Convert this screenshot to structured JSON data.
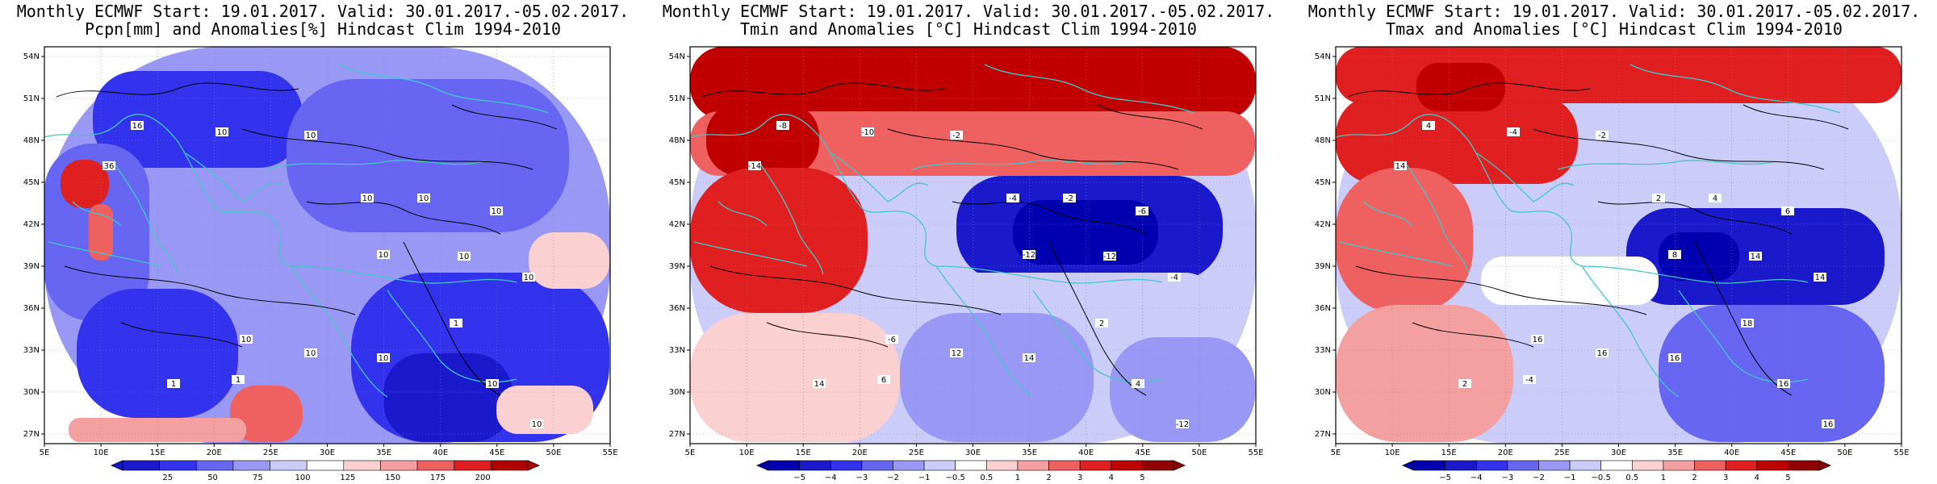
{
  "panels": [
    {
      "id": "pcpn",
      "title_line1": "Monthly ECMWF Start: 19.01.2017. Valid: 30.01.2017.-05.02.2017.",
      "title_line2": "Pcpn[mm] and Anomalies[%] Hindcast Clim 1994-2010",
      "colorbar": {
        "labels": [
          "25",
          "50",
          "75",
          "100",
          "125",
          "150",
          "175",
          "200"
        ],
        "colors": [
          "#1a1acc",
          "#3333ee",
          "#6666f2",
          "#9999f5",
          "#ccccf8",
          "#ffffff",
          "#fad0d0",
          "#f5a0a0",
          "#ef6060",
          "#e02020",
          "#b00000"
        ]
      },
      "contour_labels": [
        "16",
        "10",
        "10",
        "10",
        "10",
        "10",
        "10",
        "10",
        "10",
        "10",
        "10",
        "10",
        "1",
        "1",
        "10",
        "1",
        "10",
        "36"
      ]
    },
    {
      "id": "tmin",
      "title_line1": "Monthly ECMWF Start: 19.01.2017. Valid: 30.01.2017.-05.02.2017.",
      "title_line2": "Tmin and Anomalies [°C] Hindcast Clim 1994-2010",
      "colorbar": {
        "labels": [
          "−5",
          "−4",
          "−3",
          "−2",
          "−1",
          "−0.5",
          "0.5",
          "1",
          "2",
          "3",
          "4",
          "5"
        ],
        "colors": [
          "#0000b0",
          "#1a1acc",
          "#3333ee",
          "#6666f2",
          "#9999f5",
          "#ccccf8",
          "#ffffff",
          "#fad0d0",
          "#f5a0a0",
          "#ef6060",
          "#e02020",
          "#c00000",
          "#900000"
        ]
      },
      "contour_labels": [
        "-8",
        "-10",
        "-2",
        "-4",
        "-2",
        "-6",
        "-12",
        "-12",
        "-4",
        "-6",
        "12",
        "14",
        "14",
        "6",
        "4",
        "2",
        "-12",
        "-14"
      ]
    },
    {
      "id": "tmax",
      "title_line1": "Monthly ECMWF Start: 19.01.2017. Valid: 30.01.2017.-05.02.2017.",
      "title_line2": "Tmax and Anomalies [°C] Hindcast Clim 1994-2010",
      "colorbar": {
        "labels": [
          "−5",
          "−4",
          "−3",
          "−2",
          "−1",
          "−0.5",
          "0.5",
          "1",
          "2",
          "3",
          "4",
          "5"
        ],
        "colors": [
          "#0000b0",
          "#1a1acc",
          "#3333ee",
          "#6666f2",
          "#9999f5",
          "#ccccf8",
          "#ffffff",
          "#fad0d0",
          "#f5a0a0",
          "#ef6060",
          "#e02020",
          "#c00000",
          "#900000"
        ]
      },
      "contour_labels": [
        "4",
        "-4",
        "-2",
        "2",
        "4",
        "6",
        "8",
        "14",
        "14",
        "16",
        "16",
        "16",
        "2",
        "-4",
        "16",
        "18",
        "16",
        "14"
      ]
    }
  ],
  "axes": {
    "lat_labels": [
      "54N",
      "51N",
      "48N",
      "45N",
      "42N",
      "39N",
      "36N",
      "33N",
      "30N",
      "27N"
    ],
    "lon_labels": [
      "5E",
      "10E",
      "15E",
      "20E",
      "25E",
      "30E",
      "35E",
      "40E",
      "45E",
      "50E",
      "55E"
    ]
  },
  "colors": {
    "coast": "#40c8c8",
    "contour": "#000000",
    "frame": "#000000"
  }
}
